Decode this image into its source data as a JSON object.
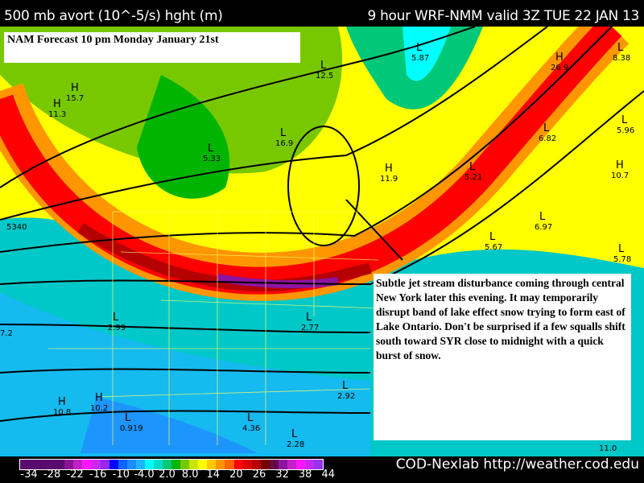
{
  "header": {
    "left": "500 mb avort (10^-5/s) hght (m)",
    "right": "9 hour WRF-NMM valid 3Z TUE 22 JAN 13"
  },
  "title_box": "NAM Forecast 10 pm Monday January 21st",
  "annotation": "Subtle jet stream disturbance coming through central New York later this evening.  It may temporarily disrupt band of lake effect snow trying to form east of Lake Ontario.  Don't be surprised if a few squalls shift south toward SYR close to midnight with a quick burst of snow.",
  "legend": {
    "ticks": [
      "-34",
      "-28",
      "-22",
      "-16",
      "-10",
      "-4.0",
      "2.0",
      "8.0",
      "14",
      "20",
      "26",
      "32",
      "38",
      "44"
    ],
    "colors": [
      "#5a0a6e",
      "#5a0a6e",
      "#5a0a6e",
      "#5a0a6e",
      "#5a0a6e",
      "#8a1496",
      "#c01ec8",
      "#ff14ff",
      "#c828f0",
      "#9628f0",
      "#0000ff",
      "#0a64ff",
      "#1e8cff",
      "#1eb4ff",
      "#00ffff",
      "#00dcc8",
      "#00c878",
      "#00b400",
      "#78c800",
      "#c8e600",
      "#ffff00",
      "#ffc800",
      "#ff9600",
      "#ff6400",
      "#ff0000",
      "#dc0000",
      "#b40000",
      "#780000",
      "#640a46",
      "#8c14a0",
      "#c81ec8",
      "#ff14ff",
      "#c828f0",
      "#9632f0"
    ]
  },
  "map_labels": [
    {
      "t": "L",
      "v": "5.87"
    },
    {
      "t": "H",
      "v": "26.9"
    },
    {
      "t": "L",
      "v": "8.38"
    },
    {
      "t": "L",
      "v": "12.5"
    },
    {
      "t": "H",
      "v": "15.7"
    },
    {
      "t": "H",
      "v": "11.3"
    },
    {
      "t": "L",
      "v": "5.33"
    },
    {
      "t": "L",
      "v": "16.9"
    },
    {
      "t": "L",
      "v": "5.21"
    },
    {
      "t": "L",
      "v": "6.82"
    },
    {
      "t": "L",
      "v": "5.96"
    },
    {
      "t": "H",
      "v": "10.7"
    },
    {
      "t": "L",
      "v": "6.97"
    },
    {
      "t": "L",
      "v": "5.67"
    },
    {
      "t": "L",
      "v": "5.78"
    },
    {
      "t": "H",
      "v": "11.9"
    },
    {
      "t": "L",
      "v": "2.99"
    },
    {
      "t": "L",
      "v": "2.77"
    },
    {
      "t": "L",
      "v": "2.92"
    },
    {
      "t": "L",
      "v": "0.919"
    },
    {
      "t": "H",
      "v": "10.2"
    },
    {
      "t": "H",
      "v": "10.8"
    },
    {
      "t": "L",
      "v": "4.36"
    },
    {
      "t": "L",
      "v": "2.28"
    },
    {
      "t": "",
      "v": "5340"
    },
    {
      "t": "",
      "v": "7.2"
    },
    {
      "t": "",
      "v": "11.0"
    }
  ],
  "credit": "COD-Nexlab http://weather.cod.edu"
}
